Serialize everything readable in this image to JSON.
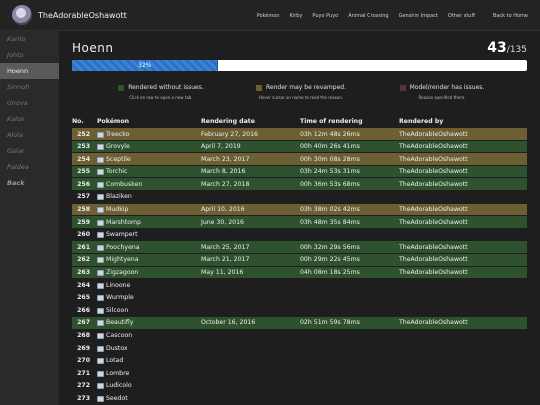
{
  "header": {
    "site_name": "TheAdorableOshawott",
    "nav": [
      "Pokémon",
      "Kirby",
      "Puyo Puyo",
      "Animal Crossing",
      "Genshin Impact",
      "Other stuff"
    ],
    "back_link": "Back to Home"
  },
  "sidebar": {
    "items": [
      {
        "label": "Kanto",
        "active": false
      },
      {
        "label": "Johto",
        "active": false
      },
      {
        "label": "Hoenn",
        "active": true
      },
      {
        "label": "Sinnoh",
        "active": false
      },
      {
        "label": "Unova",
        "active": false
      },
      {
        "label": "Kalos",
        "active": false
      },
      {
        "label": "Alola",
        "active": false
      },
      {
        "label": "Galar",
        "active": false
      },
      {
        "label": "Paldea",
        "active": false
      },
      {
        "label": "Back",
        "active": false
      }
    ]
  },
  "main": {
    "region": "Hoenn",
    "count_done": "43",
    "count_total": "/135",
    "progress_label": "32%",
    "progress_fraction": 0.32,
    "legend": [
      {
        "label": "Rendered without issues.",
        "hint": "Click on row to open a new tab.",
        "color": "#2e522e"
      },
      {
        "label": "Render may be revamped.",
        "hint": "Hover cursor on name to read the reason.",
        "color": "#6b5f33"
      },
      {
        "label": "Model/render has issues.",
        "hint": "Reason specified there.",
        "color": "#5a3535"
      }
    ],
    "columns": {
      "no": "No.",
      "pokemon": "Pokémon",
      "date": "Rendering date",
      "time": "Time of rendering",
      "by": "Rendered by"
    },
    "rows": [
      {
        "no": "252",
        "name": "Treecko",
        "date": "February 27, 2016",
        "time": "03h 12m 48s 26ms",
        "by": "TheAdorableOshawott",
        "status": "warn"
      },
      {
        "no": "253",
        "name": "Grovyle",
        "date": "April 7, 2019",
        "time": "00h 40m 26s 41ms",
        "by": "TheAdorableOshawott",
        "status": "ok"
      },
      {
        "no": "254",
        "name": "Sceptile",
        "date": "March 23, 2017",
        "time": "00h 30m 08s 28ms",
        "by": "TheAdorableOshawott",
        "status": "warn"
      },
      {
        "no": "255",
        "name": "Torchic",
        "date": "March 8, 2016",
        "time": "03h 24m 53s 31ms",
        "by": "TheAdorableOshawott",
        "status": "ok"
      },
      {
        "no": "256",
        "name": "Combusken",
        "date": "March 27, 2018",
        "time": "00h 36m 53s 68ms",
        "by": "TheAdorableOshawott",
        "status": "ok"
      },
      {
        "no": "257",
        "name": "Blaziken",
        "date": "",
        "time": "",
        "by": "",
        "status": "none"
      },
      {
        "no": "258",
        "name": "Mudkip",
        "date": "April 10, 2016",
        "time": "03h 38m 02s 42ms",
        "by": "TheAdorableOshawott",
        "status": "warn"
      },
      {
        "no": "259",
        "name": "Marshtomp",
        "date": "June 30, 2016",
        "time": "03h 48m 35s 84ms",
        "by": "TheAdorableOshawott",
        "status": "ok"
      },
      {
        "no": "260",
        "name": "Swampert",
        "date": "",
        "time": "",
        "by": "",
        "status": "none"
      },
      {
        "no": "261",
        "name": "Poochyena",
        "date": "March 25, 2017",
        "time": "00h 32m 29s 56ms",
        "by": "TheAdorableOshawott",
        "status": "ok"
      },
      {
        "no": "262",
        "name": "Mightyena",
        "date": "March 21, 2017",
        "time": "00h 29m 22s 45ms",
        "by": "TheAdorableOshawott",
        "status": "ok"
      },
      {
        "no": "263",
        "name": "Zigzagoon",
        "date": "May 11, 2016",
        "time": "04h 08m 18s 25ms",
        "by": "TheAdorableOshawott",
        "status": "ok"
      },
      {
        "no": "264",
        "name": "Linoone",
        "date": "",
        "time": "",
        "by": "",
        "status": "none"
      },
      {
        "no": "265",
        "name": "Wurmple",
        "date": "",
        "time": "",
        "by": "",
        "status": "none"
      },
      {
        "no": "266",
        "name": "Silcoon",
        "date": "",
        "time": "",
        "by": "",
        "status": "none"
      },
      {
        "no": "267",
        "name": "Beautifly",
        "date": "October 16, 2016",
        "time": "02h 51m 59s 78ms",
        "by": "TheAdorableOshawott",
        "status": "ok"
      },
      {
        "no": "268",
        "name": "Cascoon",
        "date": "",
        "time": "",
        "by": "",
        "status": "none"
      },
      {
        "no": "269",
        "name": "Dustox",
        "date": "",
        "time": "",
        "by": "",
        "status": "none"
      },
      {
        "no": "270",
        "name": "Lotad",
        "date": "",
        "time": "",
        "by": "",
        "status": "none"
      },
      {
        "no": "271",
        "name": "Lombre",
        "date": "",
        "time": "",
        "by": "",
        "status": "none"
      },
      {
        "no": "272",
        "name": "Ludicolo",
        "date": "",
        "time": "",
        "by": "",
        "status": "none"
      },
      {
        "no": "273",
        "name": "Seedot",
        "date": "",
        "time": "",
        "by": "",
        "status": "none"
      }
    ]
  }
}
